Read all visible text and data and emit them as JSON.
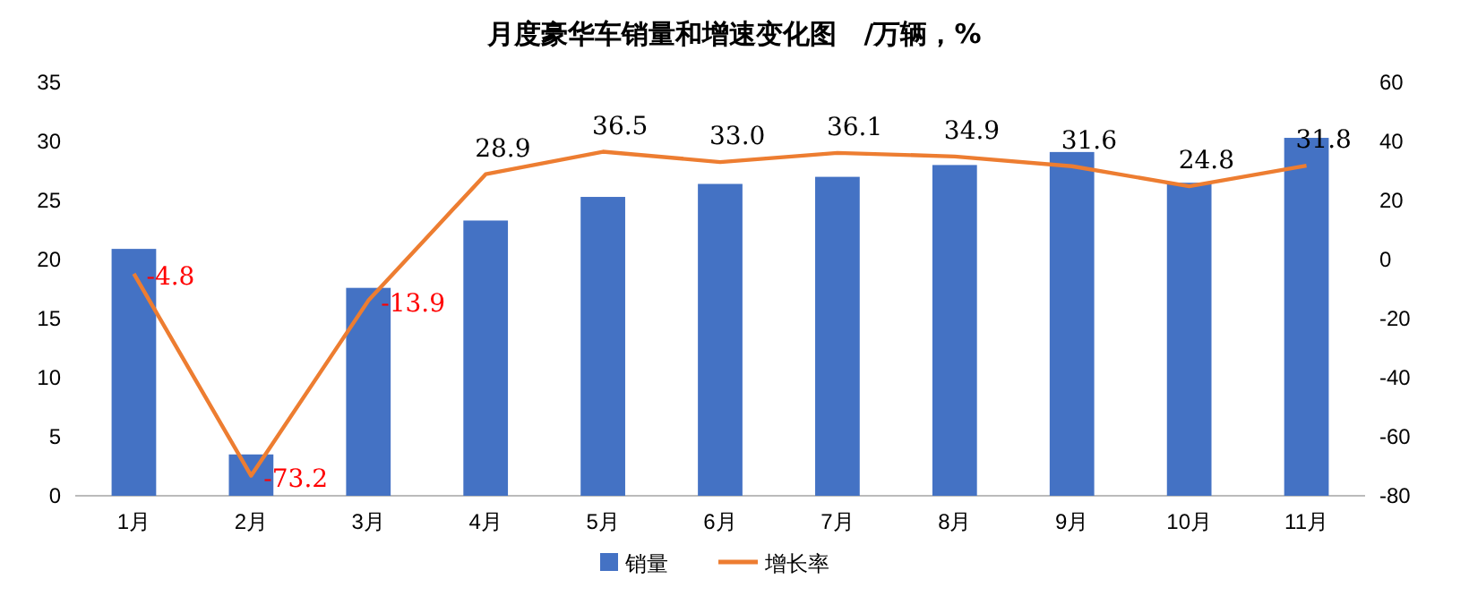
{
  "chart_data": {
    "type": "bar",
    "title": "月度豪华车销量和增速变化图　/万辆，%",
    "categories": [
      "1月",
      "2月",
      "3月",
      "4月",
      "5月",
      "6月",
      "7月",
      "8月",
      "9月",
      "10月",
      "11月"
    ],
    "series": [
      {
        "name": "销量",
        "color": "#4472c4",
        "values": [
          20.9,
          3.5,
          17.6,
          23.3,
          25.3,
          26.4,
          27.0,
          28.0,
          29.1,
          26.5,
          30.3
        ]
      },
      {
        "name": "增长率",
        "type": "line",
        "axis": "y2",
        "color": "#ed7d31",
        "values": [
          -4.8,
          -73.2,
          -13.9,
          28.9,
          36.5,
          33.0,
          36.1,
          34.9,
          31.6,
          24.8,
          31.8
        ],
        "value_labels": [
          "-4.8",
          "-73.2",
          "-13.9",
          "28.9",
          "36.5",
          "33.0",
          "36.1",
          "34.9",
          "31.6",
          "24.8",
          "31.8"
        ]
      }
    ],
    "ylim": [
      0,
      35
    ],
    "yticks": [
      0,
      5,
      10,
      15,
      20,
      25,
      30,
      35
    ],
    "y2lim": [
      -80,
      60
    ],
    "y2ticks": [
      -80,
      -60,
      -40,
      -20,
      0,
      20,
      40,
      60
    ],
    "legend": "bottom",
    "grid": false,
    "marker": "none"
  }
}
